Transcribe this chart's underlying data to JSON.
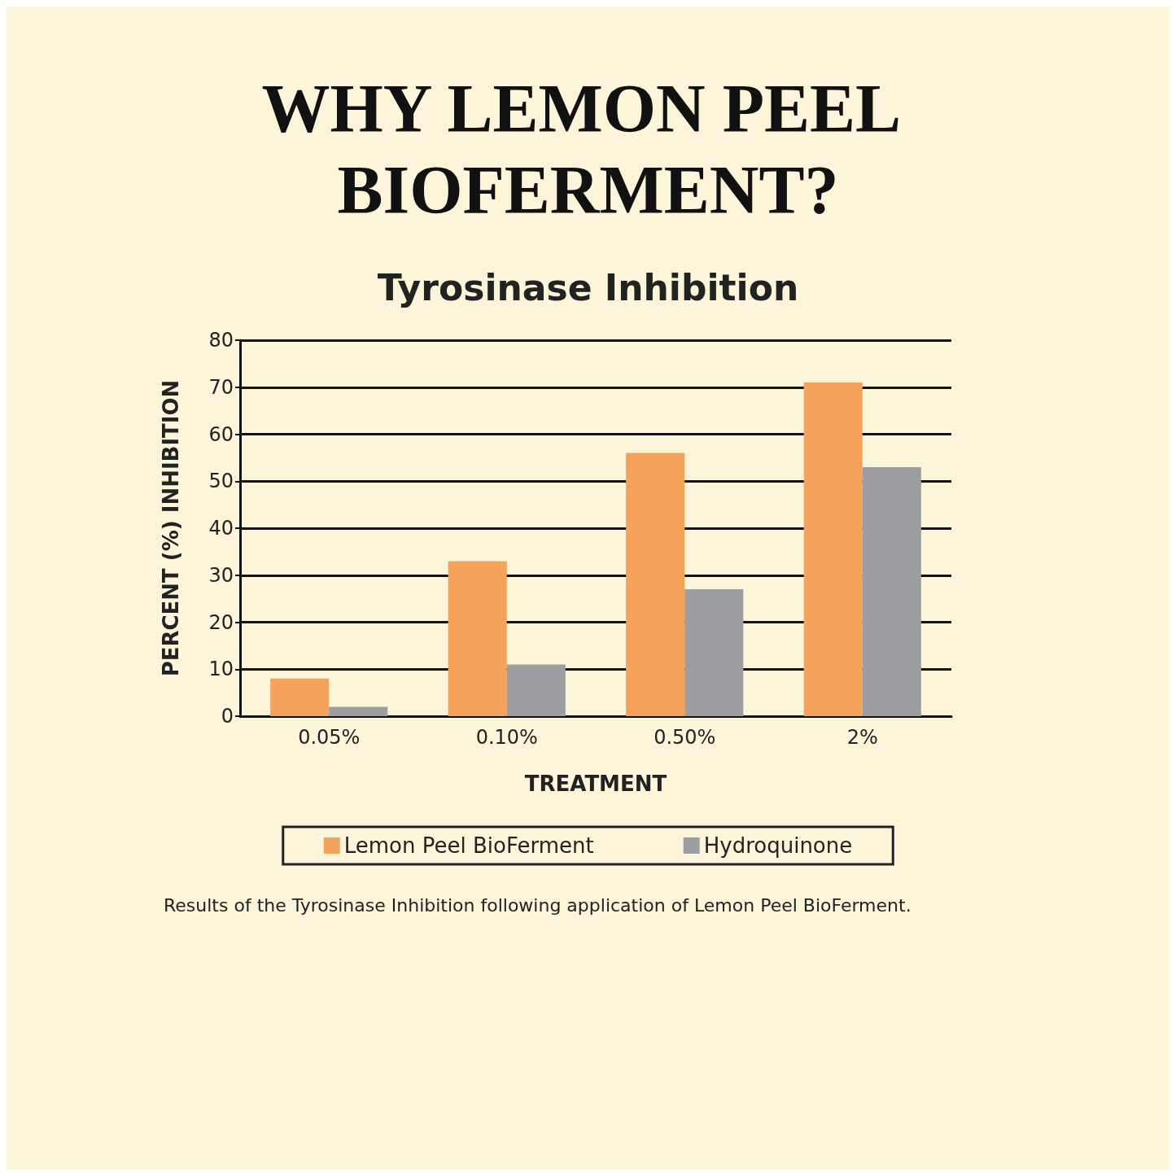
{
  "chart_data": {
    "type": "bar",
    "title": "WHY LEMON PEEL BIOFERMENT?",
    "subtitle": "Tyrosinase Inhibition",
    "xlabel": "TREATMENT",
    "ylabel": "PERCENT (%) INHIBITION",
    "categories": [
      "0.05%",
      "0.10%",
      "0.50%",
      "2%"
    ],
    "series": [
      {
        "name": "Lemon Peel BioFerment",
        "color": "#f5a25a",
        "values": [
          8,
          33,
          56,
          71
        ]
      },
      {
        "name": "Hydroquinone",
        "color": "#9d9ea1",
        "values": [
          2,
          11,
          27,
          53
        ]
      }
    ],
    "ylim": [
      0,
      80
    ],
    "yticks": [
      0,
      10,
      20,
      30,
      40,
      50,
      60,
      70,
      80
    ],
    "grid": "y",
    "legend": "bottom",
    "annotations": [
      "Results of the Tyrosinase Inhibition following application of Lemon Peel BioFerment."
    ]
  }
}
